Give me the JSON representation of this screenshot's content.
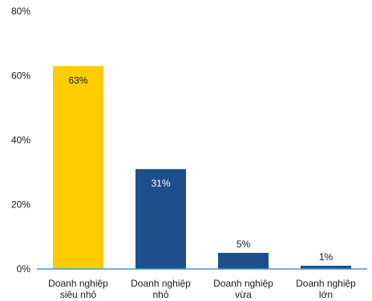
{
  "chart_data": {
    "type": "bar",
    "categories": [
      [
        "Doanh nghiệp",
        "siêu nhỏ"
      ],
      [
        "Doanh nghiệp",
        "nhỏ"
      ],
      [
        "Doanh nghiệp",
        "vừa"
      ],
      [
        "Doanh nghiệp",
        "lớn"
      ]
    ],
    "values": [
      63,
      31,
      5,
      1
    ],
    "data_labels": [
      "63%",
      "31%",
      "5%",
      "1%"
    ],
    "ylim": [
      0,
      80
    ],
    "yticks": [
      0,
      20,
      40,
      60,
      80
    ],
    "ytick_labels": [
      "0%",
      "20%",
      "40%",
      "60%",
      "80%"
    ],
    "grid": false,
    "legend": "none",
    "colors": {
      "highlight": "#FFCC00",
      "bar": "#1F4E8C",
      "axis": "#3C9AD6",
      "label_inside": "#1a1a1a",
      "label_inside_dark": "#ffffff",
      "label_outside": "#1a1a1a"
    },
    "bar_colors": [
      "#FFCC00",
      "#1F4E8C",
      "#1F4E8C",
      "#1F4E8C"
    ],
    "data_label_positions": [
      "inside",
      "inside",
      "outside",
      "outside"
    ],
    "data_label_colors": [
      "#1a1a1a",
      "#ffffff",
      "#1a1a1a",
      "#1a1a1a"
    ]
  }
}
